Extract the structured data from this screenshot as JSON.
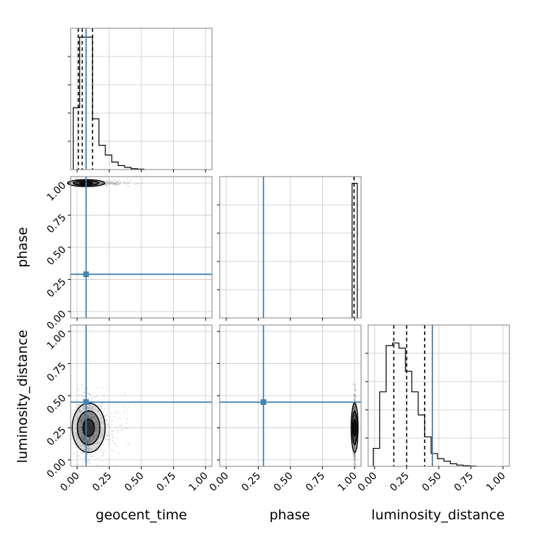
{
  "chart_data": {
    "type": "corner",
    "parameters": [
      "geocent_time",
      "phase",
      "luminosity_distance"
    ],
    "axis_range": [
      -0.05,
      1.05
    ],
    "tick_labels": [
      "0.00",
      "0.25",
      "0.50",
      "0.75",
      "1.00"
    ],
    "tick_values": [
      0,
      0.25,
      0.5,
      0.75,
      1.0
    ],
    "grid": true,
    "colors": {
      "truth": "#4682b4",
      "hist": "#000000",
      "quantile": "#000000",
      "grid": "#c8c8c8",
      "samples": "#808080"
    },
    "truths": {
      "geocent_time": 0.07,
      "phase": 0.29,
      "luminosity_distance": 0.45
    },
    "quantiles": {
      "geocent_time": [
        0.01,
        0.04,
        0.12
      ],
      "phase": [
        0.995
      ],
      "luminosity_distance": [
        0.15,
        0.25,
        0.39
      ]
    },
    "histograms": {
      "geocent_time": {
        "edges": [
          -0.03,
          0.02,
          0.07,
          0.12,
          0.17,
          0.22,
          0.27,
          0.32,
          0.37,
          0.42,
          0.47,
          0.52
        ],
        "counts": [
          1.4,
          3.0,
          3.0,
          1.15,
          0.55,
          0.33,
          0.17,
          0.09,
          0.05,
          0.02,
          0.01
        ],
        "ymax": 3.2
      },
      "phase": {
        "edges": [
          0.98,
          1.02
        ],
        "counts": [
          1.0
        ],
        "ymax": 1.05
      },
      "luminosity_distance": {
        "edges": [
          -0.01,
          0.04,
          0.09,
          0.14,
          0.19,
          0.24,
          0.29,
          0.34,
          0.39,
          0.44,
          0.49,
          0.54,
          0.59,
          0.64,
          0.69,
          0.74,
          0.79
        ],
        "counts": [
          0.14,
          0.58,
          0.94,
          0.96,
          0.92,
          0.74,
          0.58,
          0.4,
          0.23,
          0.1,
          0.06,
          0.04,
          0.02,
          0.01,
          0.005,
          0.002
        ],
        "ymax": 1.1
      }
    },
    "density_2d": {
      "phase_vs_geocent_time": {
        "x_center": 0.03,
        "y_center": 1.0,
        "x_spread": 0.09,
        "y_spread": 0.01
      },
      "luminosity_distance_vs_geocent_time": {
        "x_center": 0.05,
        "y_center": 0.25,
        "x_spread": 0.08,
        "y_spread": 0.12
      },
      "luminosity_distance_vs_phase": {
        "x_center": 1.0,
        "y_center": 0.25,
        "x_spread": 0.005,
        "y_spread": 0.12
      }
    }
  }
}
